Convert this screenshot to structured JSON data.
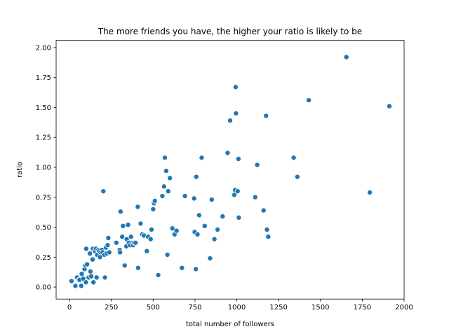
{
  "chart_data": {
    "type": "scatter",
    "title": "The more friends you have, the higher your ratio is likely to be",
    "xlabel": "total number of followers",
    "ylabel": "ratio",
    "xlim": [
      -80,
      2000
    ],
    "ylim": [
      -0.1,
      2.06
    ],
    "xticks": [
      0,
      250,
      500,
      750,
      1000,
      1250,
      1500,
      1750,
      2000
    ],
    "xtick_labels": [
      "0",
      "250",
      "500",
      "750",
      "1000",
      "1250",
      "1500",
      "1750",
      "2000"
    ],
    "yticks": [
      0,
      0.25,
      0.5,
      0.75,
      1.0,
      1.25,
      1.5,
      1.75,
      2.0
    ],
    "ytick_labels": [
      "0.00",
      "0.25",
      "0.50",
      "0.75",
      "1.00",
      "1.25",
      "1.50",
      "1.75",
      "2.00"
    ],
    "grid": false,
    "legend": "none",
    "marker_color": "#1f77b4",
    "points": [
      {
        "x": 12,
        "y": 0.05
      },
      {
        "x": 35,
        "y": 0.01
      },
      {
        "x": 45,
        "y": 0.08
      },
      {
        "x": 55,
        "y": 0.06
      },
      {
        "x": 60,
        "y": 0.06
      },
      {
        "x": 70,
        "y": 0.01
      },
      {
        "x": 73,
        "y": 0.11
      },
      {
        "x": 82,
        "y": 0.07
      },
      {
        "x": 90,
        "y": 0.15
      },
      {
        "x": 95,
        "y": 0.18
      },
      {
        "x": 98,
        "y": 0.04
      },
      {
        "x": 100,
        "y": 0.32
      },
      {
        "x": 105,
        "y": 0.19
      },
      {
        "x": 110,
        "y": 0.08
      },
      {
        "x": 115,
        "y": 0.08
      },
      {
        "x": 122,
        "y": 0.28
      },
      {
        "x": 125,
        "y": 0.13
      },
      {
        "x": 130,
        "y": 0.09
      },
      {
        "x": 138,
        "y": 0.23
      },
      {
        "x": 140,
        "y": 0.32
      },
      {
        "x": 143,
        "y": 0.04
      },
      {
        "x": 152,
        "y": 0.3
      },
      {
        "x": 158,
        "y": 0.32
      },
      {
        "x": 162,
        "y": 0.08
      },
      {
        "x": 165,
        "y": 0.27
      },
      {
        "x": 172,
        "y": 0.31
      },
      {
        "x": 176,
        "y": 0.3
      },
      {
        "x": 182,
        "y": 0.25
      },
      {
        "x": 186,
        "y": 0.29
      },
      {
        "x": 195,
        "y": 0.31
      },
      {
        "x": 198,
        "y": 0.29
      },
      {
        "x": 202,
        "y": 0.8
      },
      {
        "x": 208,
        "y": 0.27
      },
      {
        "x": 212,
        "y": 0.08
      },
      {
        "x": 218,
        "y": 0.33
      },
      {
        "x": 222,
        "y": 0.28
      },
      {
        "x": 228,
        "y": 0.35
      },
      {
        "x": 232,
        "y": 0.41
      },
      {
        "x": 238,
        "y": 0.29
      },
      {
        "x": 280,
        "y": 0.37
      },
      {
        "x": 300,
        "y": 0.31
      },
      {
        "x": 302,
        "y": 0.29
      },
      {
        "x": 305,
        "y": 0.63
      },
      {
        "x": 315,
        "y": 0.42
      },
      {
        "x": 320,
        "y": 0.51
      },
      {
        "x": 330,
        "y": 0.18
      },
      {
        "x": 340,
        "y": 0.34
      },
      {
        "x": 342,
        "y": 0.4
      },
      {
        "x": 350,
        "y": 0.52
      },
      {
        "x": 355,
        "y": 0.37
      },
      {
        "x": 362,
        "y": 0.35
      },
      {
        "x": 368,
        "y": 0.42
      },
      {
        "x": 375,
        "y": 0.37
      },
      {
        "x": 380,
        "y": 0.35
      },
      {
        "x": 386,
        "y": 0.37
      },
      {
        "x": 395,
        "y": 0.37
      },
      {
        "x": 408,
        "y": 0.67
      },
      {
        "x": 410,
        "y": 0.16
      },
      {
        "x": 425,
        "y": 0.53
      },
      {
        "x": 435,
        "y": 0.44
      },
      {
        "x": 445,
        "y": 0.43
      },
      {
        "x": 462,
        "y": 0.3
      },
      {
        "x": 470,
        "y": 0.42
      },
      {
        "x": 485,
        "y": 0.4
      },
      {
        "x": 490,
        "y": 0.48
      },
      {
        "x": 500,
        "y": 0.65
      },
      {
        "x": 505,
        "y": 0.7
      },
      {
        "x": 510,
        "y": 0.72
      },
      {
        "x": 530,
        "y": 0.1
      },
      {
        "x": 555,
        "y": 0.76
      },
      {
        "x": 565,
        "y": 0.84
      },
      {
        "x": 570,
        "y": 1.08
      },
      {
        "x": 578,
        "y": 0.97
      },
      {
        "x": 585,
        "y": 0.27
      },
      {
        "x": 590,
        "y": 0.8
      },
      {
        "x": 600,
        "y": 0.91
      },
      {
        "x": 615,
        "y": 0.49
      },
      {
        "x": 628,
        "y": 0.44
      },
      {
        "x": 640,
        "y": 0.47
      },
      {
        "x": 672,
        "y": 0.16
      },
      {
        "x": 690,
        "y": 0.76
      },
      {
        "x": 745,
        "y": 0.74
      },
      {
        "x": 748,
        "y": 0.46
      },
      {
        "x": 755,
        "y": 0.15
      },
      {
        "x": 758,
        "y": 0.92
      },
      {
        "x": 765,
        "y": 0.44
      },
      {
        "x": 775,
        "y": 0.6
      },
      {
        "x": 790,
        "y": 1.08
      },
      {
        "x": 808,
        "y": 0.51
      },
      {
        "x": 840,
        "y": 0.24
      },
      {
        "x": 850,
        "y": 0.73
      },
      {
        "x": 866,
        "y": 0.4
      },
      {
        "x": 885,
        "y": 0.48
      },
      {
        "x": 915,
        "y": 0.59
      },
      {
        "x": 945,
        "y": 1.12
      },
      {
        "x": 960,
        "y": 1.39
      },
      {
        "x": 985,
        "y": 0.77
      },
      {
        "x": 990,
        "y": 0.81
      },
      {
        "x": 993,
        "y": 1.67
      },
      {
        "x": 995,
        "y": 1.45
      },
      {
        "x": 1005,
        "y": 0.8
      },
      {
        "x": 1010,
        "y": 1.07
      },
      {
        "x": 1012,
        "y": 0.58
      },
      {
        "x": 1110,
        "y": 0.75
      },
      {
        "x": 1122,
        "y": 1.02
      },
      {
        "x": 1160,
        "y": 0.64
      },
      {
        "x": 1175,
        "y": 1.43
      },
      {
        "x": 1180,
        "y": 0.48
      },
      {
        "x": 1188,
        "y": 0.42
      },
      {
        "x": 1340,
        "y": 1.08
      },
      {
        "x": 1362,
        "y": 0.92
      },
      {
        "x": 1430,
        "y": 1.56
      },
      {
        "x": 1655,
        "y": 1.92
      },
      {
        "x": 1795,
        "y": 0.79
      },
      {
        "x": 1912,
        "y": 1.51
      }
    ]
  }
}
